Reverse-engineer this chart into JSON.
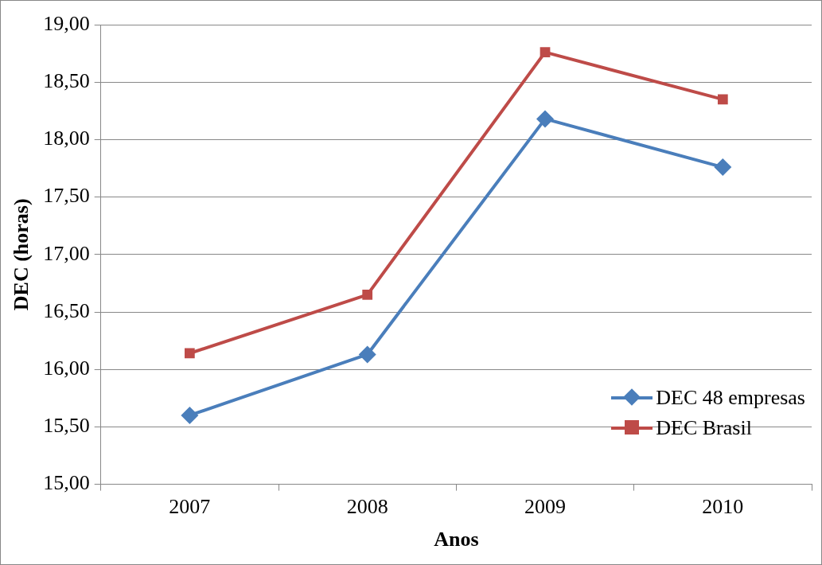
{
  "chart_data": {
    "type": "line",
    "xlabel": "Anos",
    "ylabel": "DEC (horas)",
    "categories": [
      "2007",
      "2008",
      "2009",
      "2010"
    ],
    "series": [
      {
        "name": "DEC 48 empresas",
        "color": "#4a7ebb",
        "marker": "diamond",
        "values": [
          15.6,
          16.13,
          18.18,
          17.76
        ]
      },
      {
        "name": "DEC Brasil",
        "color": "#be4b48",
        "marker": "square",
        "values": [
          16.14,
          16.65,
          18.76,
          18.35
        ]
      }
    ],
    "ylim": [
      15,
      19
    ],
    "yticks": [
      {
        "value": 15,
        "label": "15,00"
      },
      {
        "value": 15.5,
        "label": "15,50"
      },
      {
        "value": 16,
        "label": "16,00"
      },
      {
        "value": 16.5,
        "label": "16,50"
      },
      {
        "value": 17,
        "label": "17,00"
      },
      {
        "value": 17.5,
        "label": "17,50"
      },
      {
        "value": 18,
        "label": "18,00"
      },
      {
        "value": 18.5,
        "label": "18,50"
      },
      {
        "value": 19,
        "label": "19,00"
      }
    ],
    "grid": "y",
    "legend": "bottom right",
    "line_style": "solid"
  }
}
